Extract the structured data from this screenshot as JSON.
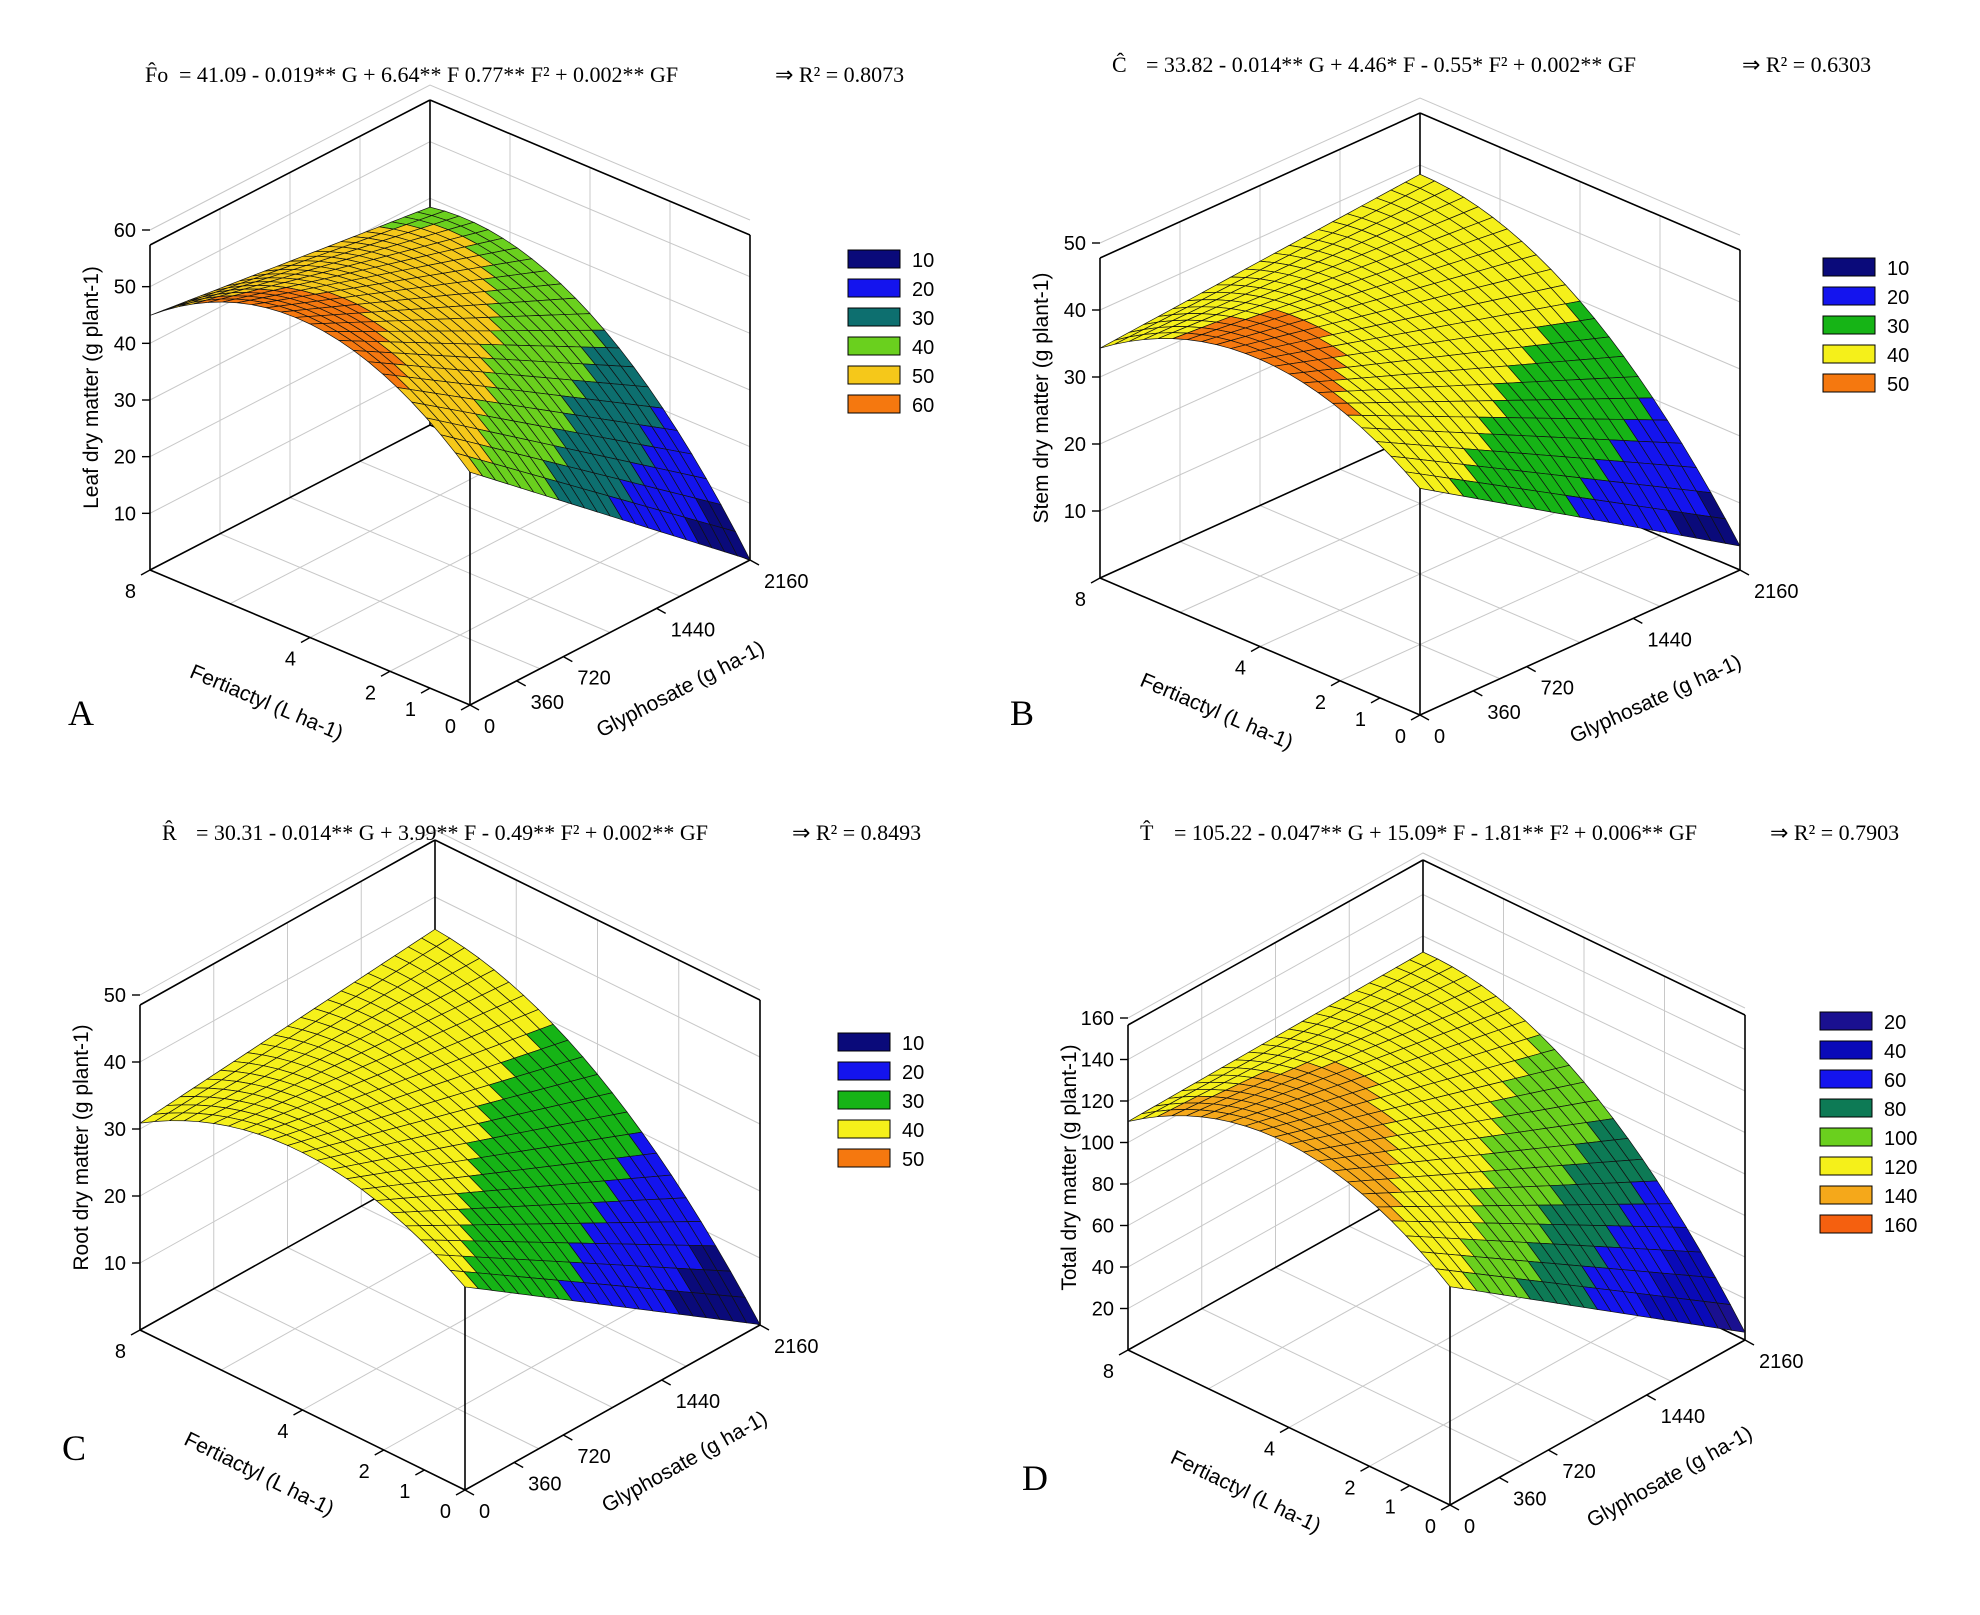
{
  "chart_data": [
    {
      "type": "surface3d",
      "panel_label": "A",
      "equation": {
        "response": "F̂o",
        "formula": "= 41.09 - 0.019** G + 6.64** F   0.77** F² + 0.002** GF",
        "r2": "⇒  R² = 0.8073"
      },
      "zlabel": "Leaf dry matter  (g plant-1)",
      "xlabel": "Glyphosate (g ha-1)",
      "ylabel": "Fertiactyl (L ha-1)",
      "glyphosate_ticks": [
        "0",
        "360",
        "720",
        "1440",
        "2160"
      ],
      "fertiactyl_ticks": [
        "0",
        "1",
        "2",
        "4",
        "8"
      ],
      "z_ticks": [
        "10",
        "20",
        "30",
        "40",
        "50",
        "60"
      ],
      "zlim": [
        0,
        60
      ],
      "coefficients": {
        "b0": 41.09,
        "bG": -0.019,
        "bF": 6.64,
        "bF2": -0.77,
        "bGF": 0.002
      },
      "legend": [
        {
          "label": "10",
          "color": "#0a0a7a"
        },
        {
          "label": "20",
          "color": "#1414ee"
        },
        {
          "label": "30",
          "color": "#0d6f6f"
        },
        {
          "label": "40",
          "color": "#6ad01e"
        },
        {
          "label": "50",
          "color": "#f5c81a"
        },
        {
          "label": "60",
          "color": "#f5780f"
        }
      ]
    },
    {
      "type": "surface3d",
      "panel_label": "B",
      "equation": {
        "response": "Ĉ",
        "formula": "= 33.82 - 0.014** G + 4.46* F - 0.55* F² + 0.002** GF",
        "r2": "⇒  R² = 0.6303"
      },
      "zlabel": "Stem dry matter  (g plant-1)",
      "xlabel": "Glyphosate (g ha-1)",
      "ylabel": "Fertiactyl (L ha-1)",
      "glyphosate_ticks": [
        "0",
        "360",
        "720",
        "1440",
        "2160"
      ],
      "fertiactyl_ticks": [
        "0",
        "1",
        "2",
        "4",
        "8"
      ],
      "z_ticks": [
        "10",
        "20",
        "30",
        "40",
        "50"
      ],
      "zlim": [
        0,
        50
      ],
      "coefficients": {
        "b0": 33.82,
        "bG": -0.014,
        "bF": 4.46,
        "bF2": -0.55,
        "bGF": 0.002
      },
      "legend": [
        {
          "label": "10",
          "color": "#0a0a7a"
        },
        {
          "label": "20",
          "color": "#1414ee"
        },
        {
          "label": "30",
          "color": "#16b416"
        },
        {
          "label": "40",
          "color": "#f5f01a"
        },
        {
          "label": "50",
          "color": "#f5780f"
        }
      ]
    },
    {
      "type": "surface3d",
      "panel_label": "C",
      "equation": {
        "response": "R̂",
        "formula": "= 30.31 - 0.014** G + 3.99** F - 0.49** F² + 0.002** GF",
        "r2": "⇒  R² = 0.8493"
      },
      "zlabel": "Root dry matter  (g plant-1)",
      "xlabel": "Glyphosate (g ha-1)",
      "ylabel": "Fertiactyl (L ha-1)",
      "glyphosate_ticks": [
        "0",
        "360",
        "720",
        "1440",
        "2160"
      ],
      "fertiactyl_ticks": [
        "0",
        "1",
        "2",
        "4",
        "8"
      ],
      "z_ticks": [
        "10",
        "20",
        "30",
        "40",
        "50"
      ],
      "zlim": [
        0,
        50
      ],
      "coefficients": {
        "b0": 30.31,
        "bG": -0.014,
        "bF": 3.99,
        "bF2": -0.49,
        "bGF": 0.002
      },
      "legend": [
        {
          "label": "10",
          "color": "#0a0a7a"
        },
        {
          "label": "20",
          "color": "#1414ee"
        },
        {
          "label": "30",
          "color": "#16b416"
        },
        {
          "label": "40",
          "color": "#f5f01a"
        },
        {
          "label": "50",
          "color": "#f5780f"
        }
      ]
    },
    {
      "type": "surface3d",
      "panel_label": "D",
      "equation": {
        "response": "T̂",
        "formula": "= 105.22 - 0.047** G + 15.09* F - 1.81** F² + 0.006** GF",
        "r2": "⇒  R² = 0.7903"
      },
      "zlabel": "Total dry matter  (g plant-1)",
      "xlabel": "Glyphosate (g ha-1)",
      "ylabel": "Fertiactyl (L ha-1)",
      "glyphosate_ticks": [
        "0",
        "360",
        "720",
        "1440",
        "2160"
      ],
      "fertiactyl_ticks": [
        "0",
        "1",
        "2",
        "4",
        "8"
      ],
      "z_ticks": [
        "20",
        "40",
        "60",
        "80",
        "100",
        "120",
        "140",
        "160"
      ],
      "zlim": [
        0,
        160
      ],
      "coefficients": {
        "b0": 105.22,
        "bG": -0.047,
        "bF": 15.09,
        "bF2": -1.81,
        "bGF": 0.006
      },
      "legend": [
        {
          "label": "20",
          "color": "#1a1090"
        },
        {
          "label": "40",
          "color": "#0a0ab8"
        },
        {
          "label": "60",
          "color": "#1414ee"
        },
        {
          "label": "80",
          "color": "#0d7a55"
        },
        {
          "label": "100",
          "color": "#6ad01e"
        },
        {
          "label": "120",
          "color": "#f5f01a"
        },
        {
          "label": "140",
          "color": "#f5a81a"
        },
        {
          "label": "160",
          "color": "#f5600f"
        }
      ]
    }
  ]
}
